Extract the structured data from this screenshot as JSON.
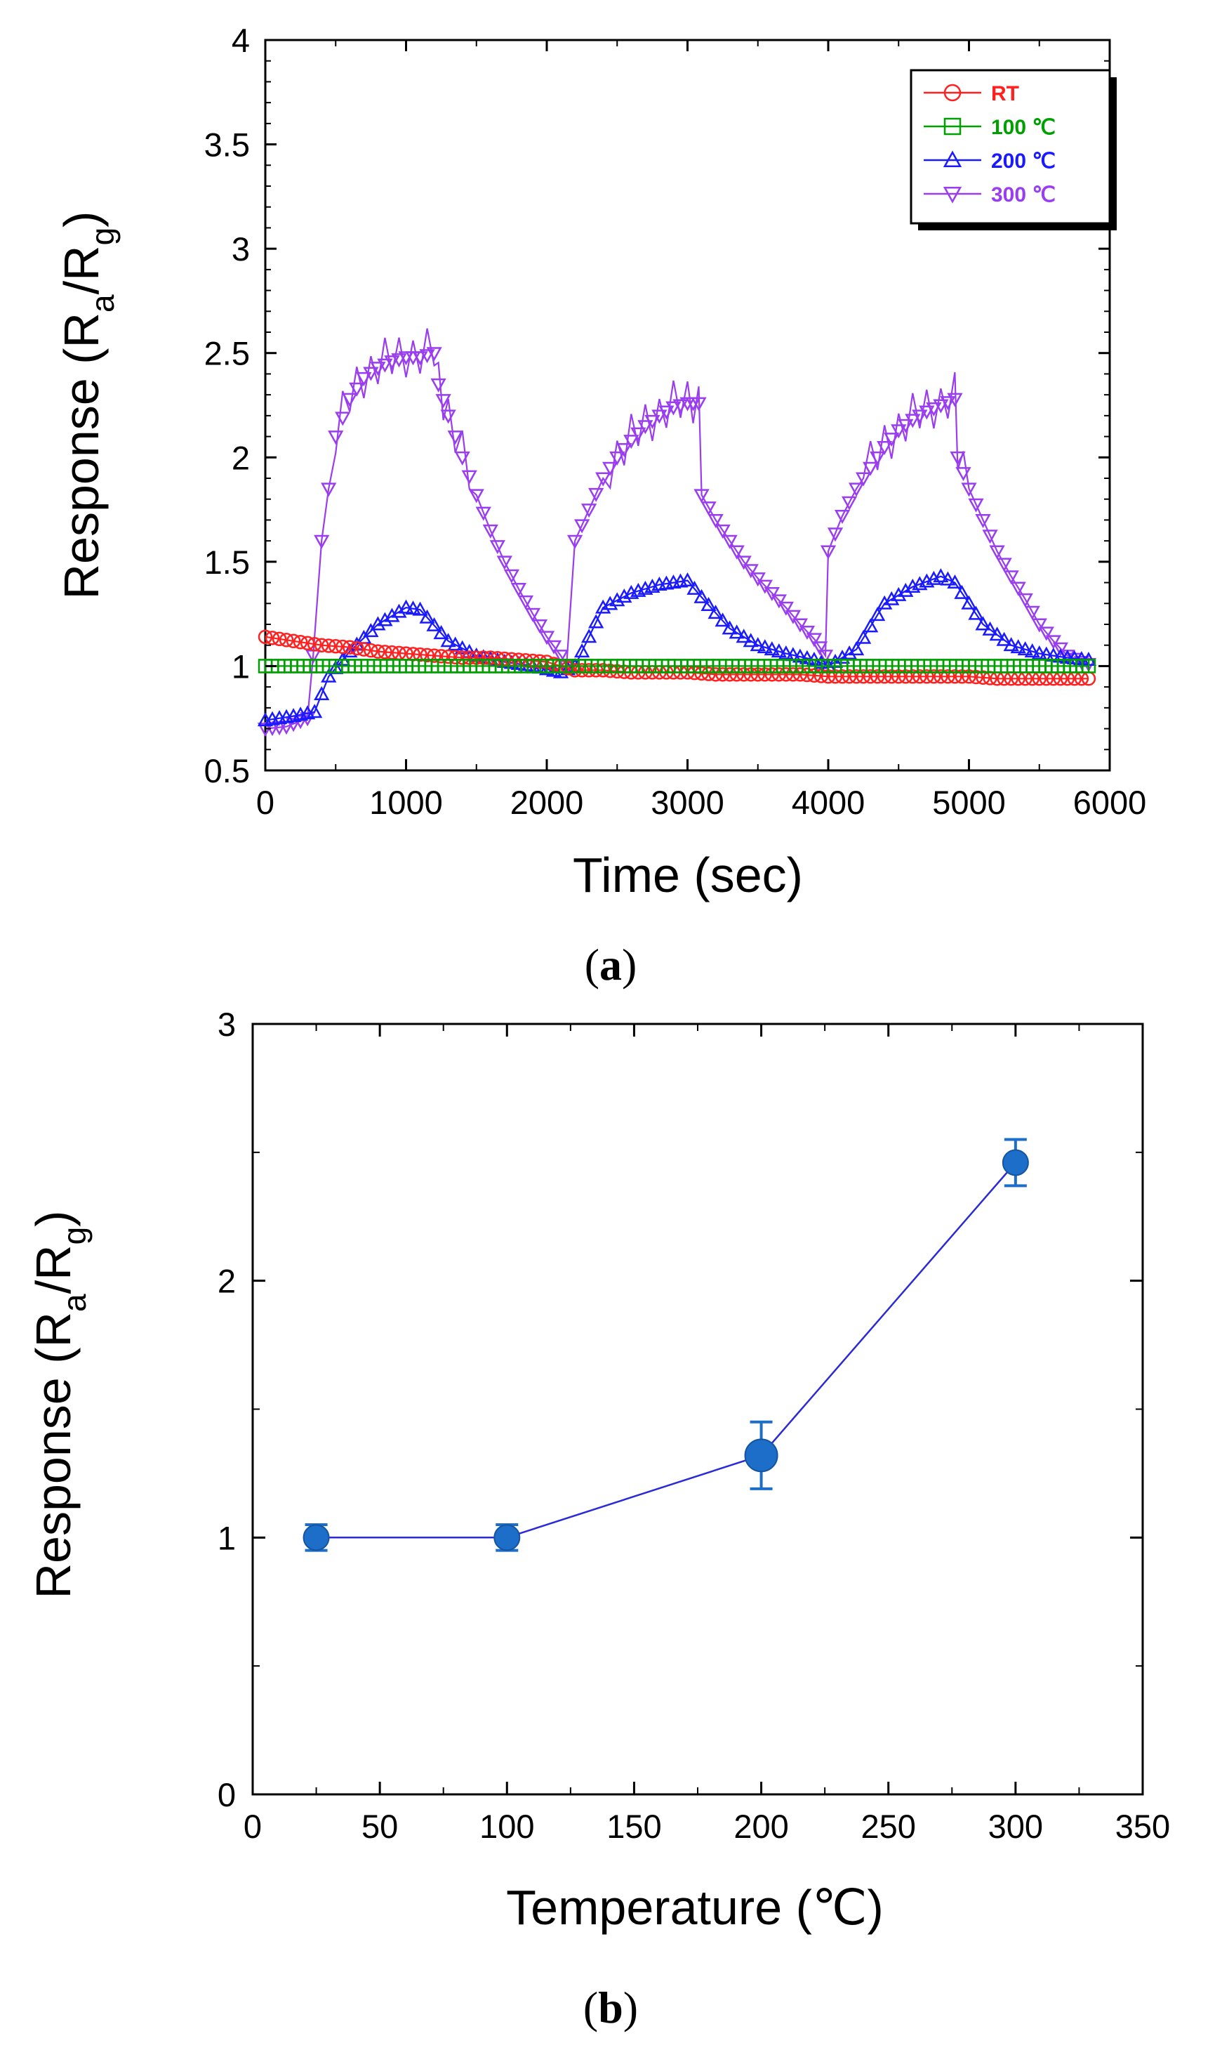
{
  "chart_data": [
    {
      "type": "line",
      "panel_label": "a",
      "xlabel": "Time (sec)",
      "ylabel": "Response (Ra/Rg)",
      "ylabel_parts": {
        "prefix": "Response (R",
        "sub1": "a",
        "mid": "/R",
        "sub2": "g",
        "suffix": ")"
      },
      "xlim": [
        0,
        6000
      ],
      "ylim": [
        0.5,
        4
      ],
      "xticks": [
        0,
        1000,
        2000,
        3000,
        4000,
        5000,
        6000
      ],
      "yticks": [
        0.5,
        1,
        1.5,
        2,
        2.5,
        3,
        3.5,
        4
      ],
      "ytick_labels": [
        "0.5",
        "1",
        "1.5",
        "2",
        "2.5",
        "3",
        "3.5",
        "4"
      ],
      "legend_position": "top-right",
      "series": [
        {
          "name": "RT",
          "color": "#ff2020",
          "marker": "circle",
          "x": [
            0,
            200,
            400,
            600,
            800,
            1000,
            1200,
            1400,
            1600,
            1800,
            2000,
            2200,
            2400,
            2600,
            2800,
            3000,
            3200,
            3400,
            3600,
            3800,
            4000,
            4200,
            4400,
            4600,
            4800,
            5000,
            5200,
            5400,
            5600,
            5800,
            5850
          ],
          "y": [
            1.14,
            1.12,
            1.1,
            1.09,
            1.07,
            1.06,
            1.05,
            1.04,
            1.04,
            1.03,
            1.02,
            0.98,
            0.98,
            0.97,
            0.97,
            0.97,
            0.96,
            0.96,
            0.96,
            0.96,
            0.95,
            0.95,
            0.95,
            0.95,
            0.95,
            0.95,
            0.94,
            0.94,
            0.94,
            0.94,
            0.94
          ]
        },
        {
          "name": "100 ℃",
          "color": "#00a000",
          "marker": "square",
          "x": [
            0,
            500,
            1000,
            1500,
            2000,
            2500,
            3000,
            3500,
            4000,
            4500,
            5000,
            5500,
            5850
          ],
          "y": [
            1,
            1,
            1,
            1,
            1,
            1,
            1,
            1,
            1,
            1,
            1,
            1,
            1
          ]
        },
        {
          "name": "200 ℃",
          "color": "#1a1aff",
          "marker": "triangle-up",
          "x": [
            0,
            200,
            350,
            450,
            600,
            800,
            1000,
            1100,
            1300,
            1500,
            1700,
            1900,
            2100,
            2200,
            2400,
            2600,
            2800,
            3000,
            3100,
            3300,
            3500,
            3700,
            3900,
            4000,
            4200,
            4400,
            4600,
            4800,
            4900,
            5100,
            5300,
            5500,
            5700,
            5850
          ],
          "y": [
            0.74,
            0.76,
            0.78,
            0.95,
            1.07,
            1.2,
            1.28,
            1.27,
            1.12,
            1.05,
            1.02,
            1.0,
            0.97,
            1.0,
            1.28,
            1.35,
            1.39,
            1.41,
            1.33,
            1.18,
            1.1,
            1.06,
            1.03,
            1.0,
            1.08,
            1.3,
            1.38,
            1.43,
            1.4,
            1.2,
            1.1,
            1.06,
            1.04,
            1.03
          ]
        },
        {
          "name": "300 ℃",
          "color": "#9a3cf0",
          "marker": "triangle-down",
          "x": [
            0,
            150,
            300,
            340,
            400,
            500,
            600,
            700,
            800,
            900,
            1000,
            1100,
            1200,
            1230,
            1300,
            1400,
            1500,
            1600,
            1700,
            1800,
            1900,
            2000,
            2100,
            2140,
            2200,
            2300,
            2400,
            2500,
            2600,
            2700,
            2800,
            2900,
            3000,
            3080,
            3100,
            3200,
            3300,
            3400,
            3500,
            3600,
            3700,
            3800,
            3900,
            3980,
            4000,
            4100,
            4200,
            4300,
            4400,
            4500,
            4600,
            4700,
            4800,
            4900,
            4920,
            5000,
            5100,
            5200,
            5300,
            5400,
            5500,
            5600,
            5700,
            5800,
            5850
          ],
          "y": [
            0.7,
            0.71,
            0.75,
            1.05,
            1.6,
            2.1,
            2.28,
            2.38,
            2.43,
            2.46,
            2.48,
            2.48,
            2.5,
            2.35,
            2.2,
            2.0,
            1.82,
            1.65,
            1.5,
            1.37,
            1.25,
            1.14,
            1.05,
            1.0,
            1.6,
            1.75,
            1.9,
            2.0,
            2.08,
            2.15,
            2.2,
            2.24,
            2.26,
            2.26,
            1.82,
            1.7,
            1.6,
            1.5,
            1.42,
            1.35,
            1.28,
            1.2,
            1.13,
            1.05,
            1.55,
            1.72,
            1.85,
            1.95,
            2.05,
            2.13,
            2.18,
            2.22,
            2.25,
            2.28,
            2.0,
            1.85,
            1.7,
            1.55,
            1.43,
            1.32,
            1.2,
            1.12,
            1.05,
            1.02,
            1.01
          ]
        }
      ]
    },
    {
      "type": "scatter",
      "panel_label": "b",
      "xlabel": "Temperature (℃)",
      "ylabel": "Response (Ra/Rg)",
      "ylabel_parts": {
        "prefix": "Response (R",
        "sub1": "a",
        "mid": "/R",
        "sub2": "g",
        "suffix": ")"
      },
      "xlim": [
        0,
        350
      ],
      "ylim": [
        0,
        3
      ],
      "xticks": [
        0,
        50,
        100,
        150,
        200,
        250,
        300,
        350
      ],
      "yticks": [
        0,
        1,
        2,
        3
      ],
      "minor_yticks": [
        0.5,
        1.5,
        2.5
      ],
      "series": [
        {
          "name": "Response",
          "color": "#1c6ec8",
          "line_color": "#2a2ad8",
          "x": [
            25,
            100,
            200,
            300
          ],
          "y": [
            1.0,
            1.0,
            1.32,
            2.46
          ],
          "err": [
            0.05,
            0.05,
            0.13,
            0.09
          ]
        }
      ]
    }
  ]
}
